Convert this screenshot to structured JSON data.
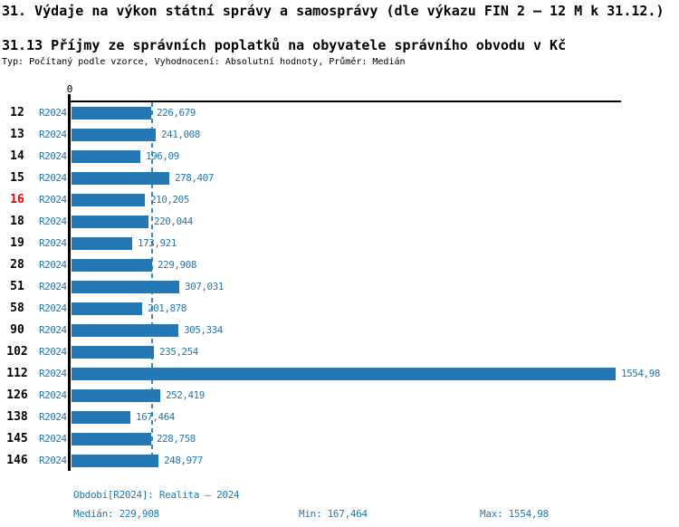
{
  "header": {
    "title": "31. Výdaje na výkon státní správy a samosprávy (dle výkazu FIN 2 – 12 M k 31.12.)",
    "subtitle": "31.13 Příjmy ze správních poplatků na obyvatele správního obvodu v Kč",
    "meta": "Typ: Počítaný podle vzorce, Vyhodnocení: Absolutní hodnoty, Průměr: Medián"
  },
  "chart_data": {
    "type": "bar",
    "orientation": "horizontal",
    "title": "31.13 Příjmy ze správních poplatků na obyvatele správního obvodu v Kč",
    "categories": [
      "12",
      "13",
      "14",
      "15",
      "16",
      "18",
      "19",
      "28",
      "51",
      "58",
      "90",
      "102",
      "112",
      "126",
      "138",
      "145",
      "146"
    ],
    "series": [
      {
        "name": "R2024",
        "values": [
          226.679,
          241.008,
          196.09,
          278.407,
          210.205,
          220.044,
          173.921,
          229.908,
          307.031,
          201.878,
          305.334,
          235.254,
          1554.98,
          252.419,
          167.464,
          228.758,
          248.977
        ]
      }
    ],
    "value_labels": [
      "226,679",
      "241,008",
      "196,09",
      "278,407",
      "210,205",
      "220,044",
      "173,921",
      "229,908",
      "307,031",
      "201,878",
      "305,334",
      "235,254",
      "1554,98",
      "252,419",
      "167,464",
      "228,758",
      "248,977"
    ],
    "highlighted_category": "16",
    "highlight_color": "#e60000",
    "bar_color": "#2478b4",
    "label_color": "#2478b4",
    "axis": {
      "zero_tick_label": "0",
      "xlim": [
        0,
        1570
      ],
      "grid": false
    },
    "median_line": {
      "value": 229.908,
      "style": "dashed",
      "color": "#3a89c0"
    }
  },
  "footer": {
    "period_label": "Období[R2024]: Realita – 2024",
    "median_label": "Medián: 229,908",
    "min_label": "Min: 167,464",
    "max_label": "Max: 1554,98"
  }
}
